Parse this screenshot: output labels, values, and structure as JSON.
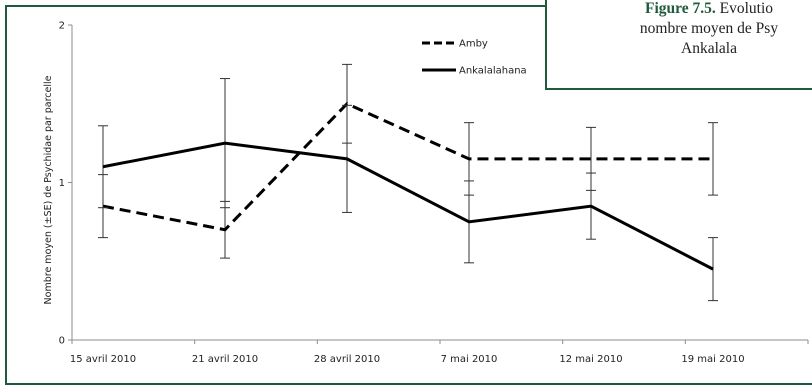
{
  "caption": {
    "figure_number": "Figure 7.5.",
    "line1_text": " Evolutio",
    "line2": "nombre moyen de Psy",
    "line3": "Ankalala"
  },
  "chart_data": {
    "type": "line",
    "categories": [
      "15 avril 2010",
      "21 avril 2010",
      "28 avril 2010",
      "7 mai 2010",
      "12 mai 2010",
      "19 mai 2010"
    ],
    "ylabel": "Nombre moyen (±SE) de Psychidae par parcelle",
    "xlabel": "",
    "ylim": [
      0,
      2
    ],
    "yticks": [
      "0",
      "1",
      "2"
    ],
    "grid": false,
    "legend_position": "top-center",
    "series": [
      {
        "name": "Amby",
        "style": "dashed",
        "color": "#000000",
        "values": [
          0.85,
          0.7,
          1.5,
          1.15,
          1.15,
          1.15
        ],
        "errors": [
          0.2,
          0.18,
          0.25,
          0.23,
          0.2,
          0.23
        ]
      },
      {
        "name": "Ankalalahana",
        "style": "solid",
        "color": "#000000",
        "values": [
          1.1,
          1.25,
          1.15,
          0.75,
          0.85,
          0.45
        ],
        "errors": [
          0.26,
          0.41,
          0.34,
          0.26,
          0.21,
          0.2
        ]
      }
    ]
  }
}
